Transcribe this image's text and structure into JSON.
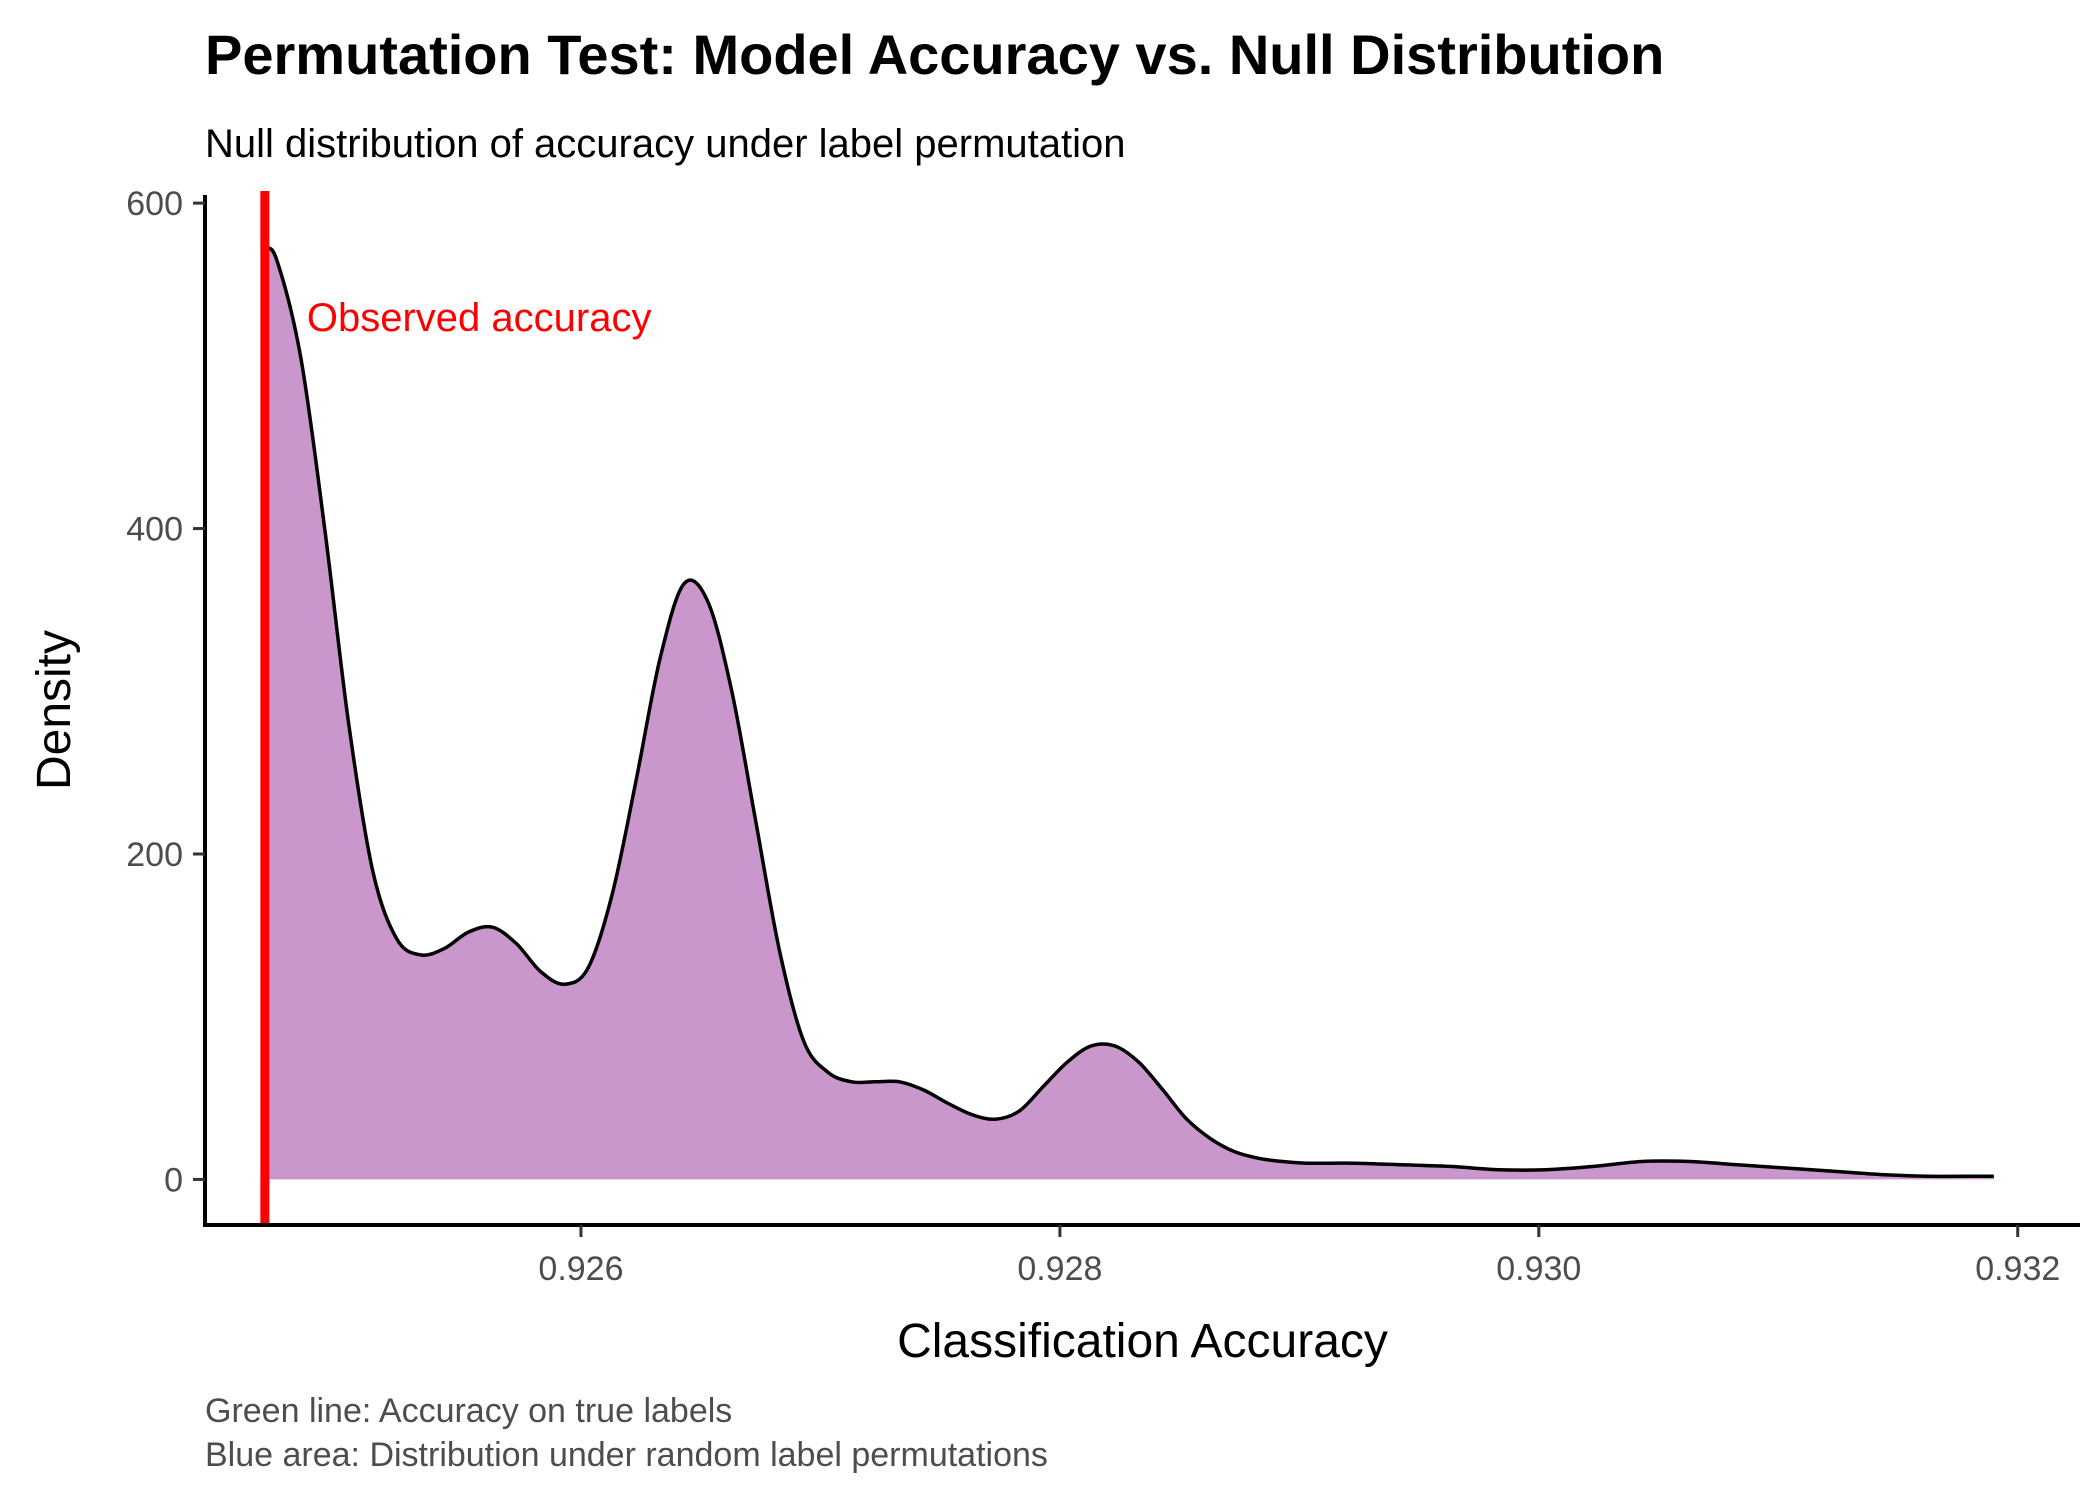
{
  "chart_data": {
    "type": "area",
    "title": "Permutation Test: Model Accuracy vs. Null Distribution",
    "subtitle": "Null distribution of accuracy under label permutation",
    "xlabel": "Classification Accuracy",
    "ylabel": "Density",
    "xlim": [
      0.92443,
      0.93226
    ],
    "ylim": [
      -28,
      605
    ],
    "x_ticks": [
      0.926,
      0.928,
      0.93,
      0.932
    ],
    "x_tick_labels": [
      "0.926",
      "0.928",
      "0.930",
      "0.932"
    ],
    "y_ticks": [
      0,
      200,
      400,
      600
    ],
    "y_tick_labels": [
      "0",
      "200",
      "400",
      "600"
    ],
    "grid": false,
    "legend": "none",
    "series": [
      {
        "x": [
          0.92468,
          0.92473,
          0.92483,
          0.92493,
          0.92503,
          0.92513,
          0.92523,
          0.92533,
          0.92543,
          0.92553,
          0.92563,
          0.92573,
          0.92583,
          0.92593,
          0.92603,
          0.92613,
          0.92623,
          0.92633,
          0.92643,
          0.92653,
          0.92663,
          0.92673,
          0.92683,
          0.92693,
          0.92703,
          0.92713,
          0.92723,
          0.92733,
          0.92743,
          0.92753,
          0.92763,
          0.92773,
          0.92783,
          0.92793,
          0.92803,
          0.92813,
          0.92823,
          0.92833,
          0.92843,
          0.92853,
          0.92863,
          0.92873,
          0.92883,
          0.92893,
          0.92903,
          0.92913,
          0.92923,
          0.92943,
          0.92963,
          0.92983,
          0.93003,
          0.93023,
          0.93043,
          0.93063,
          0.93083,
          0.93103,
          0.93123,
          0.93143,
          0.93163,
          0.93183,
          0.9319
        ],
        "y": [
          572,
          565,
          505,
          400,
          280,
          190,
          148,
          138,
          142,
          152,
          155,
          145,
          128,
          120,
          130,
          175,
          245,
          320,
          366,
          355,
          300,
          220,
          140,
          85,
          66,
          60,
          60,
          60,
          55,
          47,
          40,
          37,
          42,
          57,
          72,
          82,
          82,
          72,
          55,
          37,
          25,
          17,
          13,
          11,
          10,
          10,
          10,
          9,
          8,
          6,
          6,
          8,
          11,
          11,
          9,
          7,
          5,
          3,
          2,
          2,
          2
        ]
      }
    ],
    "fill_color": "#c997cb",
    "line_color": "#000000",
    "observed_value": 0.92468,
    "observed_color": "#ff0000",
    "annotation": "Observed accuracy",
    "caption_lines": [
      "Green line: Accuracy on true labels",
      "Blue area: Distribution under random label permutations"
    ]
  }
}
